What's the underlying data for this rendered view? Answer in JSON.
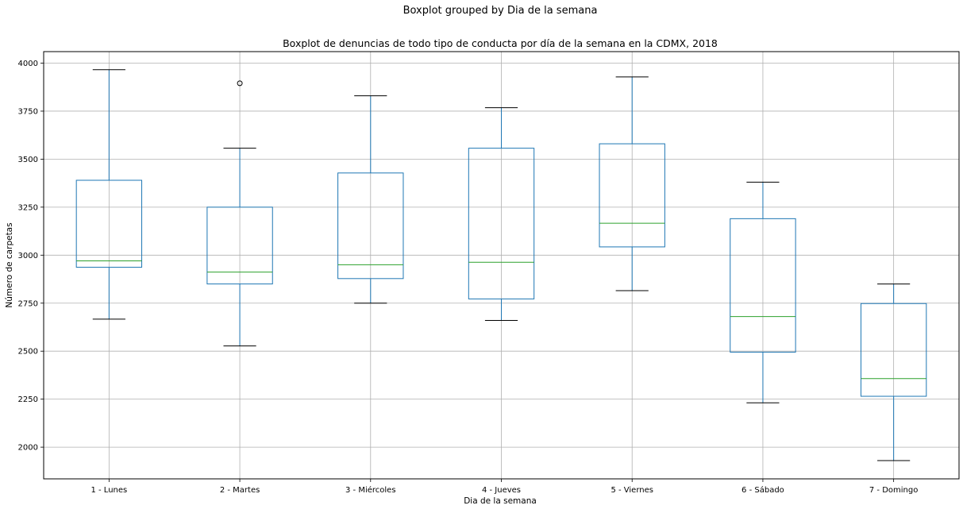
{
  "suptitle": "Boxplot grouped by Dia de la semana",
  "chart_data": {
    "type": "boxplot",
    "title": "Boxplot de denuncias de todo tipo de conducta por día de la semana en la CDMX, 2018",
    "xlabel": "Dia de la semana",
    "ylabel": "Número de carpetas",
    "ylim": [
      1835,
      4060
    ],
    "yticks": [
      2000,
      2250,
      2500,
      2750,
      3000,
      3250,
      3500,
      3750,
      4000
    ],
    "grid": true,
    "categories": [
      "1 - Lunes",
      "2 - Martes",
      "3 - Miércoles",
      "4 - Jueves",
      "5 - Viernes",
      "6 - Sábado",
      "7 - Domingo"
    ],
    "boxes": [
      {
        "whisker_low": 2667,
        "q1": 2937,
        "median": 2970,
        "q3": 3390,
        "whisker_high": 3966,
        "outliers": []
      },
      {
        "whisker_low": 2527,
        "q1": 2850,
        "median": 2912,
        "q3": 3250,
        "whisker_high": 3557,
        "outliers": [
          3895
        ]
      },
      {
        "whisker_low": 2750,
        "q1": 2878,
        "median": 2950,
        "q3": 3428,
        "whisker_high": 3830,
        "outliers": []
      },
      {
        "whisker_low": 2660,
        "q1": 2772,
        "median": 2963,
        "q3": 3557,
        "whisker_high": 3768,
        "outliers": []
      },
      {
        "whisker_low": 2815,
        "q1": 3043,
        "median": 3166,
        "q3": 3580,
        "whisker_high": 3928,
        "outliers": []
      },
      {
        "whisker_low": 2231,
        "q1": 2495,
        "median": 2680,
        "q3": 3190,
        "whisker_high": 3380,
        "outliers": []
      },
      {
        "whisker_low": 1930,
        "q1": 2265,
        "median": 2357,
        "q3": 2748,
        "whisker_high": 2850,
        "outliers": []
      }
    ],
    "colors": {
      "box": "#1f77b4",
      "median": "#2ca02c",
      "cap": "#000000",
      "grid": "#b0b0b0",
      "outlier": "#000000"
    }
  }
}
